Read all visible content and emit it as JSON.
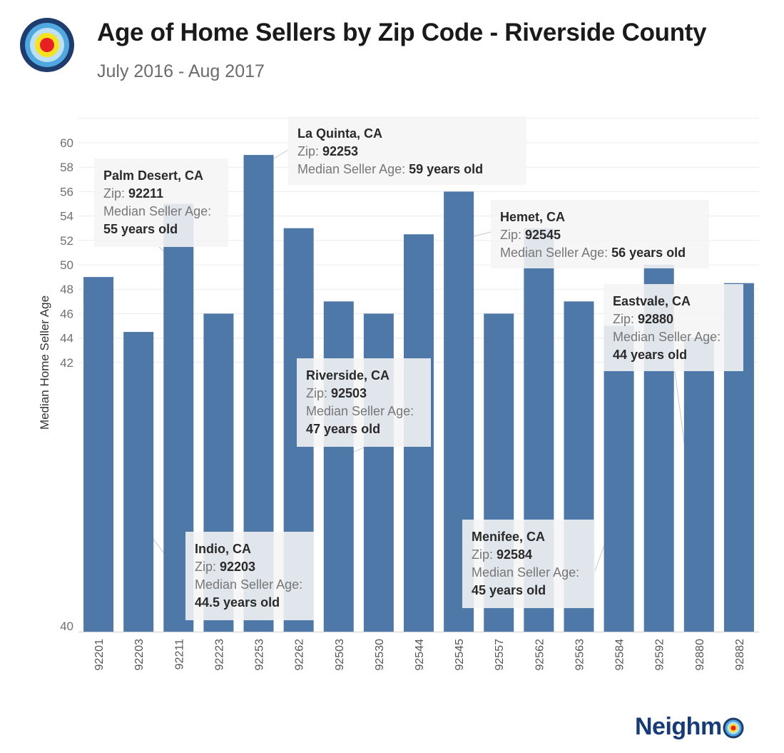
{
  "header": {
    "title": "Age of Home Sellers by Zip Code - Riverside County",
    "subtitle": "July 2016 - Aug 2017"
  },
  "brand": {
    "name": "Neighm",
    "logo_icon": "target-icon",
    "colors": {
      "dark": "#1f3c6e",
      "mid": "#4fa8df",
      "light": "#bde0f5",
      "yellow": "#f6e21f",
      "red": "#e81f25"
    }
  },
  "chart_data": {
    "type": "bar",
    "title": "Age of Home Sellers by Zip Code - Riverside County",
    "subtitle": "July 2016 - Aug 2017",
    "xlabel": "",
    "ylabel": "Median Home Seller Age",
    "ylim": [
      40,
      62
    ],
    "yticks": [
      40,
      42,
      44,
      46,
      48,
      50,
      52,
      54,
      56,
      58,
      60
    ],
    "grid": true,
    "bar_color": "#4e78a8",
    "categories": [
      "92201",
      "92203",
      "92211",
      "92223",
      "92253",
      "92262",
      "92503",
      "92530",
      "92544",
      "92545",
      "92557",
      "92562",
      "92563",
      "92584",
      "92592",
      "92880",
      "92882"
    ],
    "values": [
      49,
      44.5,
      55,
      46,
      59,
      53,
      47,
      46,
      52.5,
      56,
      46,
      53,
      47,
      45,
      50,
      44,
      48.5
    ],
    "annotations": [
      {
        "target": "92211",
        "city": "Palm Desert, CA",
        "zip_label": "Zip: ",
        "zip": "92211",
        "age_label": "Median Seller Age:",
        "age_text": "55 years old"
      },
      {
        "target": "92253",
        "city": "La Quinta, CA",
        "zip_label": "Zip: ",
        "zip": "92253",
        "age_label": "Median Seller Age: ",
        "age_text": "59 years old"
      },
      {
        "target": "92545",
        "city": "Hemet, CA",
        "zip_label": "Zip: ",
        "zip": "92545",
        "age_label": "Median Seller Age: ",
        "age_text": "56 years old"
      },
      {
        "target": "92880",
        "city": "Eastvale, CA",
        "zip_label": "Zip: ",
        "zip": "92880",
        "age_label": "Median Seller Age:",
        "age_text": "44 years old"
      },
      {
        "target": "92503",
        "city": "Riverside, CA",
        "zip_label": "Zip: ",
        "zip": "92503",
        "age_label": "Median Seller Age:",
        "age_text": "47 years old"
      },
      {
        "target": "92203",
        "city": "Indio, CA",
        "zip_label": "Zip: ",
        "zip": "92203",
        "age_label": "Median Seller Age:",
        "age_text": "44.5 years old"
      },
      {
        "target": "92584",
        "city": "Menifee, CA",
        "zip_label": "Zip: ",
        "zip": "92584",
        "age_label": "Median Seller Age:",
        "age_text": "45 years old"
      }
    ]
  }
}
